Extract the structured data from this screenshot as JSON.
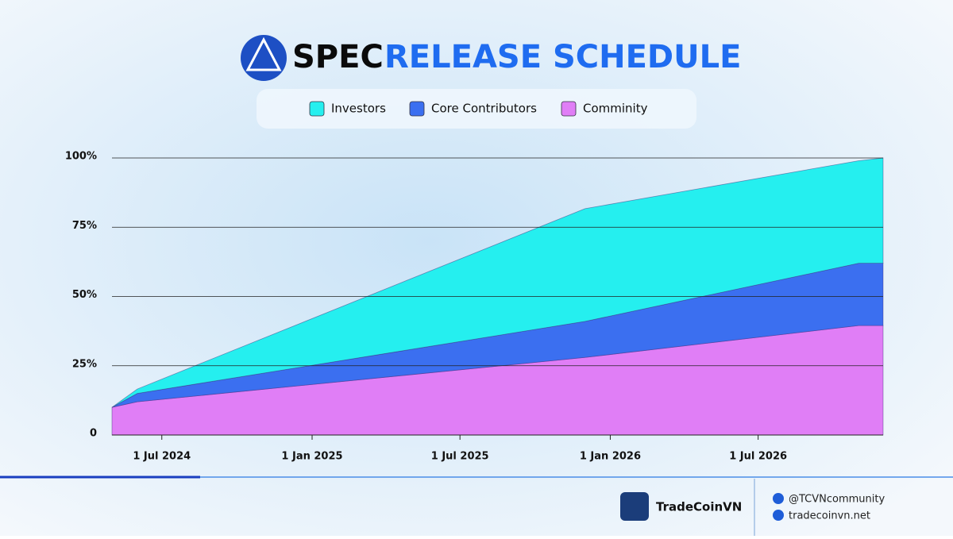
{
  "header": {
    "brand": "SPEC",
    "title": "RELEASE SCHEDULE"
  },
  "chart_data": {
    "type": "stacked_area",
    "x": [
      "2024-05-01",
      "2024-06-01",
      "2025-12-01",
      "2026-11-01",
      "2026-12-01"
    ],
    "series": [
      {
        "name": "Investors",
        "color": "#25efef",
        "values": [
          0,
          1.6,
          40.7,
          37,
          38
        ]
      },
      {
        "name": "Core Contributors",
        "color": "#3b6ff0",
        "values": [
          0,
          3,
          13,
          22.5,
          22.5
        ]
      },
      {
        "name": "Comminity",
        "color": "#e07ef6",
        "values": [
          10,
          12,
          28,
          39.5,
          39.5
        ]
      }
    ],
    "xlim": [
      "2024-05-01",
      "2026-12-01"
    ],
    "xticks": [
      {
        "value": "2024-07-01",
        "label": "1 Jul 2024"
      },
      {
        "value": "2025-01-01",
        "label": "1 Jan 2025"
      },
      {
        "value": "2025-07-01",
        "label": "1 Jul 2025"
      },
      {
        "value": "2026-01-01",
        "label": "1 Jan 2026"
      },
      {
        "value": "2026-07-01",
        "label": "1 Jul 2026"
      }
    ],
    "ylim": [
      0,
      100
    ],
    "yticks": [
      0,
      {
        "value": 25,
        "label": "25%"
      },
      {
        "value": 50,
        "label": "50%"
      },
      {
        "value": 75,
        "label": "75%"
      },
      {
        "value": 100,
        "label": "100%"
      }
    ],
    "grid": true
  },
  "footer": {
    "brand": "TradeCoinVN",
    "twitter": "@TCVNcommunity",
    "website": "tradecoinvn.net"
  }
}
